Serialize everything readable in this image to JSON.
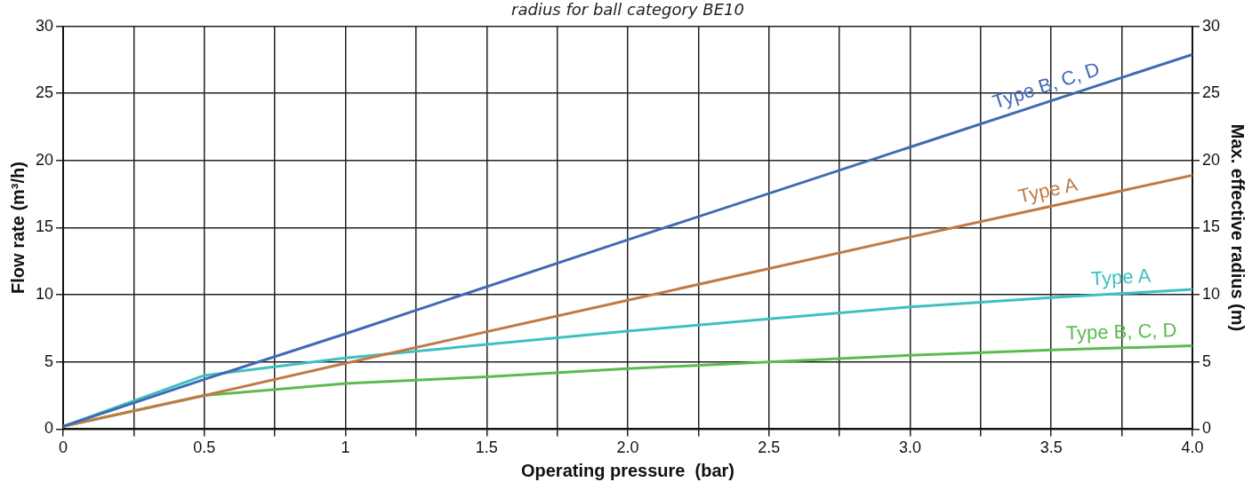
{
  "chart_data": {
    "type": "line",
    "title": "radius for ball category BE10",
    "xlabel": "Operating pressure  (bar)",
    "ylabel": "Flow rate (m³/h)",
    "y2label": "Max. effective radius (m)",
    "xlim": [
      0,
      4
    ],
    "xticks": [
      0,
      {
        "value": 0.25,
        "label": null
      },
      0.5,
      {
        "value": 0.75,
        "label": null
      },
      1,
      {
        "value": 1.25,
        "label": null
      },
      1.5,
      {
        "value": 1.75,
        "label": null
      },
      {
        "value": 2,
        "label": "2.0"
      },
      {
        "value": 2.25,
        "label": null
      },
      2.5,
      {
        "value": 2.75,
        "label": null
      },
      {
        "value": 3,
        "label": "3.0"
      },
      {
        "value": 3.25,
        "label": null
      },
      3.5,
      {
        "value": 3.75,
        "label": null
      },
      {
        "value": 4,
        "label": "4.0"
      }
    ],
    "ylim": [
      0,
      30
    ],
    "yticks": [
      0,
      5,
      10,
      15,
      20,
      25,
      30
    ],
    "y2lim": [
      0,
      30
    ],
    "y2ticks": [
      0,
      5,
      10,
      15,
      20,
      25,
      30
    ],
    "grid": true,
    "legend": false,
    "marker": "none",
    "line_style": "solid",
    "series": [
      {
        "name": "Type B, C, D",
        "color": "#4169b4",
        "x": [
          0,
          0.5,
          1,
          2,
          3,
          4
        ],
        "values": [
          0.2,
          3.7,
          7.1,
          14.1,
          21,
          27.9
        ]
      },
      {
        "name": "Type A",
        "color": "#c07a45",
        "x": [
          0,
          0.5,
          1,
          2,
          3,
          4
        ],
        "values": [
          0.2,
          2.5,
          4.9,
          9.6,
          14.3,
          18.9
        ]
      },
      {
        "name": "Type A",
        "color": "#3fc0c0",
        "x": [
          0,
          0.5,
          1,
          1.5,
          2,
          2.5,
          3,
          3.5,
          4
        ],
        "values": [
          0.2,
          4,
          5.3,
          6.3,
          7.3,
          8.2,
          9.1,
          9.8,
          10.4
        ]
      },
      {
        "name": "Type B, C, D",
        "color": "#5bbb4f",
        "x": [
          0,
          0.5,
          1,
          1.5,
          2,
          2.5,
          3,
          3.5,
          4
        ],
        "values": [
          0.2,
          2.5,
          3.4,
          3.9,
          4.5,
          5,
          5.5,
          5.9,
          6.2
        ]
      }
    ]
  }
}
